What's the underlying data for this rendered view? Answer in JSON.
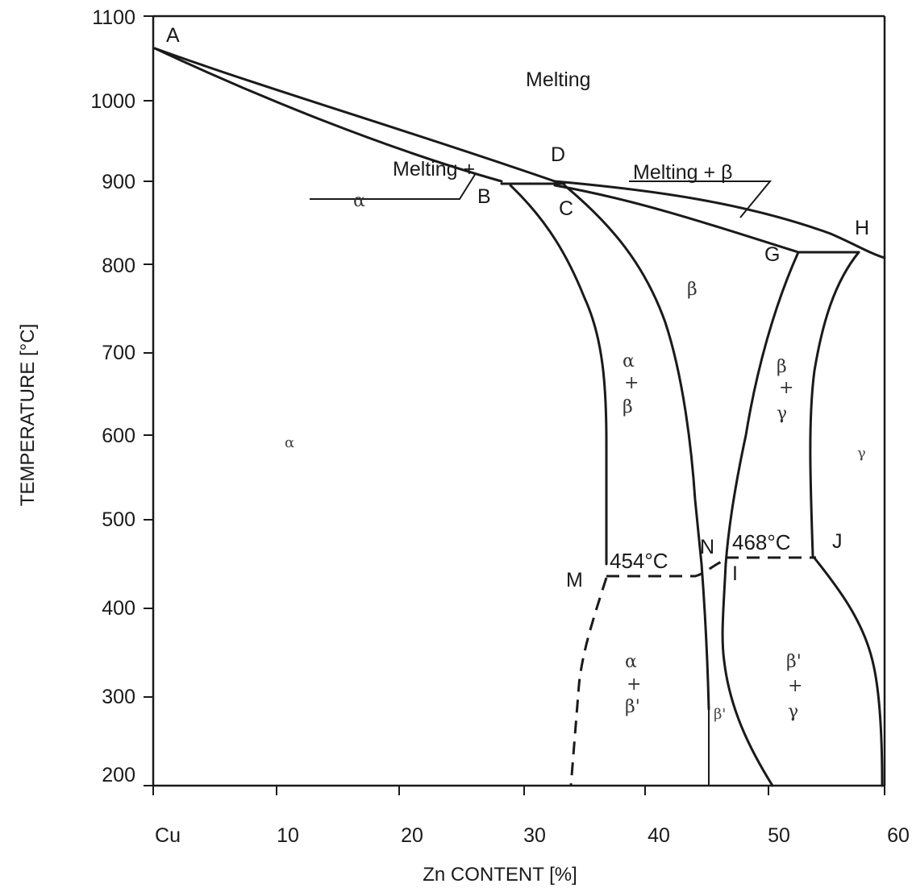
{
  "axes": {
    "y_title": "TEMPERATURE [°C]",
    "x_title": "Zn CONTENT [%]",
    "y_ticks": [
      "200",
      "300",
      "400",
      "500",
      "600",
      "700",
      "800",
      "900",
      "1000",
      "1100"
    ],
    "x_ticks": [
      "Cu",
      "10",
      "20",
      "30",
      "40",
      "50",
      "60"
    ]
  },
  "points": {
    "A": "A",
    "B": "B",
    "C": "C",
    "D": "D",
    "G": "G",
    "H": "H",
    "I": "I",
    "J": "J",
    "M": "M",
    "N": "N"
  },
  "regions": {
    "melting": "Melting",
    "melting_alpha_1": "Melting +",
    "melting_alpha_2": "α",
    "melting_beta": "Melting + β",
    "alpha": "α",
    "beta": "β",
    "gamma": "γ",
    "alpha_beta": [
      "α",
      "+",
      "β"
    ],
    "beta_gamma": [
      "β",
      "+",
      "γ"
    ],
    "alpha_betap": [
      "α",
      "+",
      "β'"
    ],
    "betap": "β'",
    "betap_gamma": [
      "β'",
      "+",
      "γ"
    ]
  },
  "temperatures": {
    "t454": "454°C",
    "t468": "468°C"
  }
}
